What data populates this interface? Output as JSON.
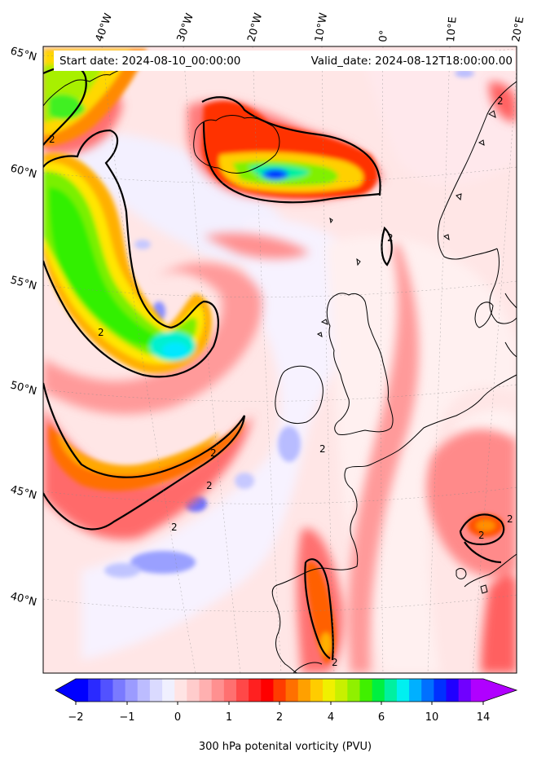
{
  "header": {
    "start_date": "Start date: 2024-08-10_00:00:00",
    "valid_date": "Valid_date: 2024-08-12T18:00:00.00"
  },
  "map": {
    "longitude_labels": [
      "40°W",
      "30°W",
      "20°W",
      "10°W",
      "0°",
      "10°E",
      "20°E"
    ],
    "latitude_labels": [
      "65°N",
      "60°N",
      "55°N",
      "50°N",
      "45°N",
      "40°N"
    ],
    "contour_label": "2",
    "colors": {
      "background": "#ffe8e8",
      "land_line": "#000000"
    }
  },
  "colorbar": {
    "title": "300 hPa potenital vorticity (PVU)",
    "tick_labels": [
      "−2",
      "−1",
      "0",
      "1",
      "2",
      "4",
      "6",
      "10",
      "14"
    ],
    "colors": [
      "#0000ff",
      "#2a2aff",
      "#5252ff",
      "#7a7aff",
      "#9b9bff",
      "#bcbcff",
      "#dadaff",
      "#f0f0ff",
      "#ffe4e4",
      "#ffcccc",
      "#ffb0b0",
      "#ff9090",
      "#ff7070",
      "#ff4848",
      "#ff2020",
      "#ff0000",
      "#ff3c00",
      "#ff7000",
      "#ffa000",
      "#ffcc00",
      "#f0f000",
      "#c8f000",
      "#90f000",
      "#40f000",
      "#00f040",
      "#00f0a0",
      "#00f0f0",
      "#00b0ff",
      "#0070ff",
      "#0030ff",
      "#2000ff",
      "#7000ff",
      "#b000ff"
    ]
  }
}
